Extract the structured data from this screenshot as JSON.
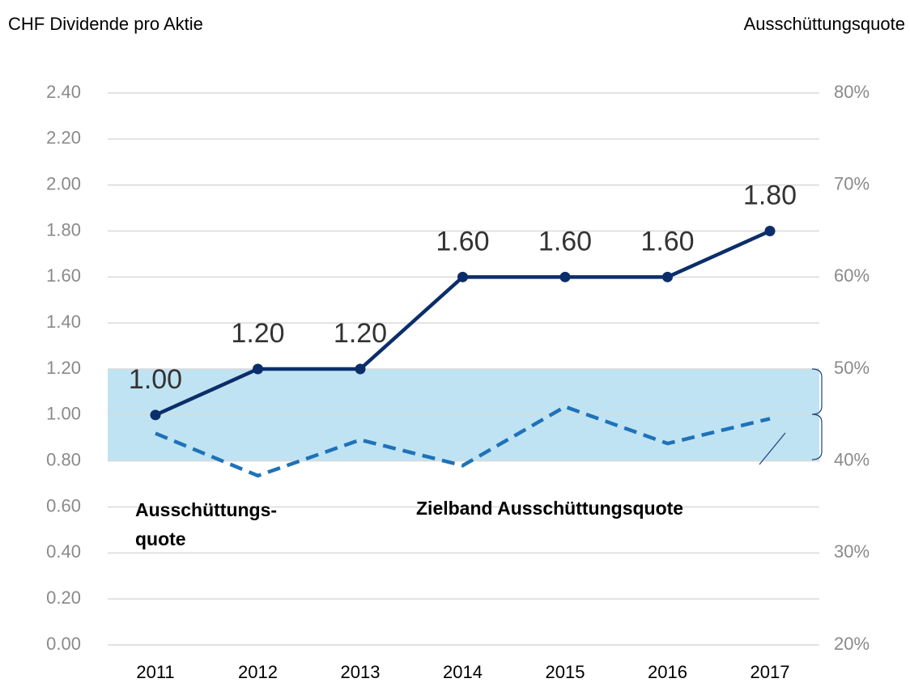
{
  "chart_data": {
    "type": "line",
    "y_axis_title": "CHF Dividende pro Aktie",
    "y2_axis_title": "Ausschüttungsquote",
    "categories": [
      "2011",
      "2012",
      "2013",
      "2014",
      "2015",
      "2016",
      "2017"
    ],
    "series": [
      {
        "color": "#0b2e6a",
        "values": [
          1.0,
          1.2,
          1.2,
          1.6,
          1.6,
          1.6,
          1.8
        ],
        "value_labels": [
          "1.00",
          "1.20",
          "1.20",
          "1.60",
          "1.60",
          "1.60",
          "1.80"
        ],
        "markers": true,
        "line_style": "solid"
      },
      {
        "color": "#1f72b8",
        "axis": "y2",
        "values": [
          43.0,
          38.4,
          42.3,
          39.5,
          45.9,
          41.9,
          44.6
        ],
        "markers": false,
        "line_style": "dashed"
      }
    ],
    "target_band": {
      "range": [
        40,
        50
      ],
      "axis": "y2",
      "color": "#bfe3f2",
      "label": "Zielband Ausschüttungsquote"
    },
    "annotations": [
      "Ausschüttungs-",
      "quote"
    ],
    "ylim": [
      0,
      2.4
    ],
    "yticks": [
      {
        "value": 0,
        "label": "0.00"
      },
      {
        "value": 0.2,
        "label": "0.20"
      },
      {
        "value": 0.4,
        "label": "0.40"
      },
      {
        "value": 0.6,
        "label": "0.60"
      },
      {
        "value": 0.8,
        "label": "0.80"
      },
      {
        "value": 1.0,
        "label": "1.00"
      },
      {
        "value": 1.2,
        "label": "1.20"
      },
      {
        "value": 1.4,
        "label": "1.40"
      },
      {
        "value": 1.6,
        "label": "1.60"
      },
      {
        "value": 1.8,
        "label": "1.80"
      },
      {
        "value": 2.0,
        "label": "2.00"
      },
      {
        "value": 2.2,
        "label": "2.20"
      },
      {
        "value": 2.4,
        "label": "2.40"
      }
    ],
    "y2lim": [
      20,
      80
    ],
    "y2ticks": [
      {
        "value": 20,
        "label": "20%"
      },
      {
        "value": 30,
        "label": "30%"
      },
      {
        "value": 40,
        "label": "40%"
      },
      {
        "value": 50,
        "label": "50%"
      },
      {
        "value": 60,
        "label": "60%"
      },
      {
        "value": 70,
        "label": "70%"
      },
      {
        "value": 80,
        "label": "80%"
      }
    ],
    "grid": true
  }
}
